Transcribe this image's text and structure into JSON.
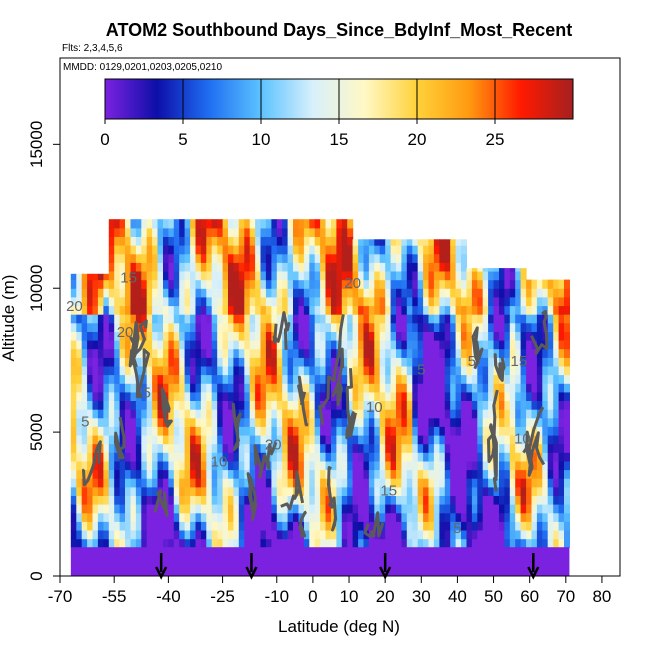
{
  "header": {
    "title": "ATOM2 Southbound Days_Since_BdyInf_Most_Recent",
    "flights_label": "Flts: 2,3,4,5,6",
    "dates_label": "MMDD: 0129,0201,0203,0205,0210"
  },
  "chart_data": {
    "type": "heatmap",
    "title": "ATOM2 Southbound Days_Since_BdyInf_Most_Recent",
    "xlabel": "Latitude (deg N)",
    "ylabel": "Altitude (m)",
    "xlim": [
      -70,
      85
    ],
    "ylim": [
      0,
      18000
    ],
    "xticks": [
      -70,
      -55,
      -40,
      -25,
      -10,
      0,
      10,
      20,
      30,
      40,
      50,
      60,
      70,
      80
    ],
    "xtick_labels": [
      "-70",
      "-55",
      "-40",
      "-25",
      "-10",
      "0",
      "10",
      "20",
      "30",
      "40",
      "50",
      "60",
      "70",
      "80"
    ],
    "yticks": [
      0,
      5000,
      10000,
      15000
    ],
    "ytick_labels": [
      "0",
      "5000",
      "10000",
      "15000"
    ],
    "colorbar": {
      "range": [
        0,
        30
      ],
      "ticks": [
        0,
        5,
        10,
        15,
        20,
        25
      ],
      "tick_labels": [
        "0",
        "5",
        "10",
        "15",
        "20",
        "25"
      ],
      "colors": [
        "#7b22e0",
        "#0d0fa8",
        "#1f6ef2",
        "#5cc3ff",
        "#d8f0fb",
        "#fff8c4",
        "#ffd23a",
        "#ff9a10",
        "#ff1a00",
        "#a52020"
      ]
    },
    "contour_labels": [
      {
        "text": "15",
        "lat": -51,
        "alt": 10200
      },
      {
        "text": "20",
        "lat": -66,
        "alt": 9200
      },
      {
        "text": "5",
        "lat": -63,
        "alt": 5200
      },
      {
        "text": "20",
        "lat": -52,
        "alt": 8300
      },
      {
        "text": "5",
        "lat": -46,
        "alt": 6200
      },
      {
        "text": "10",
        "lat": -26,
        "alt": 3800
      },
      {
        "text": "20",
        "lat": -11,
        "alt": 4400
      },
      {
        "text": "20",
        "lat": 11,
        "alt": 10000
      },
      {
        "text": "10",
        "lat": 17,
        "alt": 5700
      },
      {
        "text": "15",
        "lat": 21,
        "alt": 2800
      },
      {
        "text": "5",
        "lat": 30,
        "alt": 7000
      },
      {
        "text": "5",
        "lat": 44,
        "alt": 7300
      },
      {
        "text": "15",
        "lat": 57,
        "alt": 7300
      },
      {
        "text": "10",
        "lat": 58,
        "alt": 4600
      },
      {
        "text": "5",
        "lat": 40,
        "alt": 1500
      }
    ],
    "flight_markers_lat": [
      -42,
      -17,
      20,
      61
    ],
    "surface_layer_alt": 1000,
    "grid": false
  }
}
